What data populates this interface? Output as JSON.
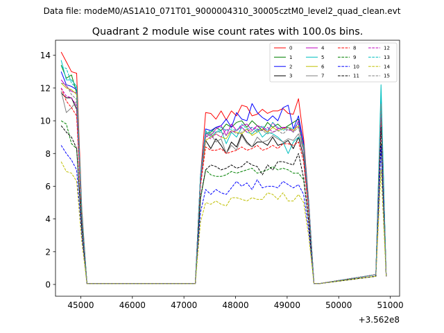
{
  "header": {
    "data_file": "Data file: modeM0/AS1A10_071T01_9000004310_30005cztM0_level2_quad_clean.evt"
  },
  "chart_data": {
    "type": "line",
    "title": "Quadrant 2 module wise count rates with 100.0s bins.",
    "xlabel": "",
    "ylabel": "",
    "x_offset_label": "+3.562e8",
    "xlim": [
      44510,
      51180
    ],
    "ylim": [
      -0.72,
      14.92
    ],
    "x_ticks": [
      45000,
      46000,
      47000,
      48000,
      49000,
      50000,
      51000
    ],
    "y_ticks": [
      0,
      2,
      4,
      6,
      8,
      10,
      12,
      14
    ],
    "legend_position": "upper right",
    "x": [
      44620,
      44720,
      44820,
      44920,
      45020,
      45120,
      47220,
      47320,
      47420,
      47520,
      47620,
      47720,
      47820,
      47920,
      48020,
      48120,
      48220,
      48320,
      48420,
      48520,
      48620,
      48720,
      48820,
      48920,
      49020,
      49120,
      49220,
      49320,
      49420,
      49520,
      49620,
      50720,
      50820,
      50920
    ],
    "gaps_after": [
      5,
      6,
      30,
      31
    ],
    "gap_level": 0.05,
    "series": [
      {
        "name": "0",
        "color": "#ff0000",
        "dash": "solid",
        "values": [
          14.2,
          13.6,
          13.0,
          12.9,
          4.6,
          0.05,
          0.05,
          6.6,
          10.5,
          10.45,
          10.1,
          10.6,
          10.05,
          10.6,
          10.3,
          10.95,
          10.85,
          10.3,
          10.4,
          10.7,
          10.45,
          10.6,
          10.6,
          10.75,
          10.45,
          10.4,
          11.35,
          8.9,
          5.0,
          0.05,
          0.05,
          0.6,
          11.6,
          0.5
        ]
      },
      {
        "name": "1",
        "color": "#008000",
        "dash": "solid",
        "values": [
          13.4,
          12.6,
          12.8,
          11.7,
          4.3,
          0.05,
          0.05,
          6.6,
          9.2,
          9.3,
          9.6,
          9.4,
          9.8,
          9.6,
          9.9,
          10.0,
          9.6,
          10.0,
          9.7,
          9.4,
          9.9,
          9.6,
          9.8,
          9.5,
          9.7,
          9.9,
          10.1,
          8.6,
          4.9,
          0.05,
          0.05,
          0.6,
          11.3,
          0.5
        ]
      },
      {
        "name": "2",
        "color": "#0000ff",
        "dash": "solid",
        "values": [
          13.0,
          12.2,
          12.1,
          11.9,
          4.3,
          0.05,
          0.05,
          6.6,
          9.5,
          9.4,
          9.6,
          9.7,
          10.1,
          9.6,
          10.5,
          10.1,
          10.0,
          11.05,
          10.5,
          10.2,
          10.0,
          10.3,
          10.0,
          10.8,
          10.95,
          9.5,
          10.3,
          8.6,
          4.9,
          0.05,
          0.05,
          0.6,
          11.6,
          0.5
        ]
      },
      {
        "name": "3",
        "color": "#000000",
        "dash": "solid",
        "values": [
          11.7,
          11.4,
          11.4,
          10.7,
          4.1,
          0.05,
          0.05,
          6.2,
          8.8,
          8.3,
          8.9,
          8.5,
          8.0,
          8.7,
          8.4,
          9.2,
          8.7,
          8.4,
          8.7,
          8.7,
          8.5,
          9.0,
          8.5,
          8.6,
          8.8,
          8.3,
          9.0,
          7.8,
          4.5,
          0.05,
          0.05,
          0.6,
          10.5,
          0.5
        ]
      },
      {
        "name": "4",
        "color": "#bf00bf",
        "dash": "solid",
        "values": [
          12.5,
          12.1,
          11.8,
          11.7,
          4.2,
          0.05,
          0.05,
          6.5,
          9.2,
          9.1,
          9.5,
          9.7,
          9.1,
          9.8,
          9.4,
          9.7,
          9.8,
          9.4,
          9.7,
          9.6,
          9.3,
          9.9,
          9.5,
          9.6,
          9.6,
          9.3,
          10.0,
          8.4,
          4.8,
          0.05,
          0.05,
          0.6,
          11.3,
          0.5
        ]
      },
      {
        "name": "5",
        "color": "#00bfbf",
        "dash": "solid",
        "values": [
          13.7,
          12.5,
          12.5,
          12.1,
          4.4,
          0.05,
          0.05,
          6.6,
          9.4,
          9.0,
          9.3,
          9.4,
          8.6,
          9.3,
          9.0,
          9.6,
          9.3,
          9.2,
          9.5,
          9.0,
          9.3,
          9.2,
          9.0,
          8.7,
          8.0,
          8.7,
          9.0,
          8.5,
          4.8,
          0.05,
          0.05,
          0.6,
          12.2,
          0.5
        ]
      },
      {
        "name": "6",
        "color": "#bfbf00",
        "dash": "solid",
        "values": [
          12.3,
          12.0,
          11.9,
          11.6,
          4.2,
          0.05,
          0.05,
          6.3,
          8.8,
          9.0,
          9.2,
          9.0,
          8.9,
          9.4,
          9.3,
          9.2,
          9.5,
          9.1,
          9.3,
          9.5,
          9.3,
          9.6,
          9.4,
          9.5,
          9.6,
          9.4,
          9.7,
          8.3,
          4.7,
          0.05,
          0.05,
          0.6,
          11.0,
          0.5
        ]
      },
      {
        "name": "7",
        "color": "#808080",
        "dash": "solid",
        "values": [
          11.8,
          10.5,
          10.8,
          11.2,
          4.1,
          0.05,
          0.05,
          6.4,
          9.0,
          9.2,
          8.7,
          8.9,
          8.0,
          8.5,
          8.2,
          9.1,
          8.6,
          8.4,
          9.0,
          8.7,
          8.8,
          9.1,
          8.9,
          8.7,
          8.9,
          8.8,
          9.2,
          8.2,
          4.7,
          0.05,
          0.05,
          0.6,
          11.0,
          0.5
        ]
      },
      {
        "name": "8",
        "color": "#ff0000",
        "dash": "dashed",
        "values": [
          12.0,
          11.2,
          10.8,
          10.3,
          3.9,
          0.05,
          0.05,
          6.0,
          8.4,
          8.2,
          8.2,
          8.3,
          8.0,
          8.1,
          8.2,
          8.4,
          8.2,
          8.3,
          8.5,
          8.2,
          8.3,
          8.5,
          8.3,
          8.6,
          8.6,
          8.5,
          8.7,
          7.5,
          4.3,
          0.05,
          0.05,
          0.6,
          10.1,
          0.5
        ]
      },
      {
        "name": "9",
        "color": "#008000",
        "dash": "dashed",
        "values": [
          10.0,
          9.8,
          8.6,
          8.3,
          3.6,
          0.05,
          0.05,
          5.2,
          7.0,
          6.7,
          6.6,
          6.6,
          6.7,
          6.9,
          6.8,
          6.9,
          7.0,
          7.1,
          6.8,
          6.9,
          7.0,
          7.2,
          7.0,
          7.1,
          7.0,
          6.8,
          6.8,
          6.4,
          3.8,
          0.05,
          0.05,
          0.5,
          8.6,
          0.5
        ]
      },
      {
        "name": "10",
        "color": "#0000ff",
        "dash": "dashed",
        "values": [
          8.5,
          8.0,
          7.6,
          7.0,
          2.9,
          0.05,
          0.05,
          4.4,
          5.8,
          5.5,
          5.8,
          5.6,
          5.5,
          5.9,
          6.3,
          6.0,
          6.2,
          5.8,
          6.4,
          5.9,
          6.0,
          6.0,
          5.9,
          6.3,
          6.1,
          5.9,
          6.1,
          5.5,
          3.3,
          0.05,
          0.05,
          0.5,
          8.5,
          0.5
        ]
      },
      {
        "name": "11",
        "color": "#000000",
        "dash": "dashed",
        "values": [
          9.7,
          9.3,
          9.0,
          8.3,
          3.4,
          0.05,
          0.05,
          5.3,
          7.0,
          7.3,
          7.2,
          7.0,
          7.1,
          7.3,
          7.1,
          7.2,
          7.5,
          7.3,
          7.2,
          6.7,
          7.3,
          7.0,
          7.5,
          7.5,
          7.4,
          7.3,
          8.0,
          6.5,
          3.8,
          0.05,
          0.05,
          0.5,
          9.6,
          0.5
        ]
      },
      {
        "name": "12",
        "color": "#bf00bf",
        "dash": "dashed",
        "values": [
          12.0,
          11.5,
          11.4,
          10.9,
          4.0,
          0.05,
          0.05,
          6.2,
          9.1,
          8.9,
          9.2,
          9.0,
          9.5,
          9.3,
          9.4,
          9.6,
          9.3,
          9.6,
          9.5,
          9.4,
          9.6,
          9.3,
          9.5,
          9.6,
          9.4,
          9.5,
          9.8,
          8.1,
          4.6,
          0.05,
          0.05,
          0.6,
          10.8,
          0.5
        ]
      },
      {
        "name": "13",
        "color": "#00bfbf",
        "dash": "dashed",
        "values": [
          13.3,
          13.2,
          12.3,
          12.0,
          4.3,
          0.05,
          0.05,
          6.5,
          9.2,
          9.4,
          9.3,
          9.6,
          9.4,
          9.5,
          9.4,
          9.8,
          9.5,
          9.6,
          9.3,
          9.7,
          9.4,
          9.9,
          9.6,
          9.4,
          9.6,
          9.5,
          9.9,
          8.4,
          4.8,
          0.05,
          0.05,
          0.6,
          11.6,
          0.5
        ]
      },
      {
        "name": "14",
        "color": "#bfbf00",
        "dash": "dashed",
        "values": [
          7.5,
          6.9,
          6.8,
          6.3,
          2.6,
          0.05,
          0.05,
          3.8,
          5.0,
          4.9,
          5.1,
          4.9,
          4.8,
          5.3,
          5.3,
          5.2,
          5.1,
          5.3,
          5.2,
          5.2,
          5.6,
          5.5,
          5.2,
          5.6,
          5.1,
          5.1,
          5.5,
          5.0,
          2.9,
          0.05,
          0.05,
          0.5,
          7.0,
          0.5
        ]
      },
      {
        "name": "15",
        "color": "#808080",
        "dash": "dashed",
        "values": [
          12.3,
          12.2,
          11.6,
          11.3,
          4.1,
          0.05,
          0.05,
          6.4,
          9.3,
          9.2,
          9.3,
          9.3,
          9.1,
          9.4,
          9.2,
          9.3,
          9.5,
          9.3,
          9.4,
          9.4,
          9.2,
          9.3,
          9.4,
          9.2,
          9.5,
          9.3,
          9.6,
          8.2,
          4.7,
          0.05,
          0.05,
          0.6,
          11.0,
          0.5
        ]
      }
    ]
  }
}
